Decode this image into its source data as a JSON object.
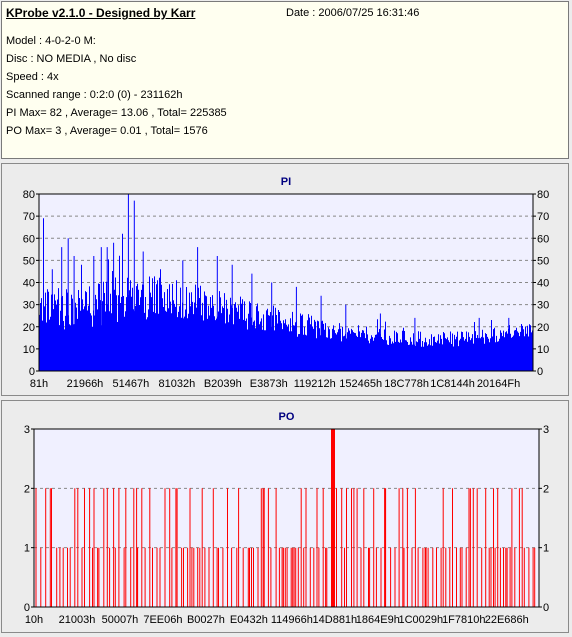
{
  "info": {
    "title": "KProbe v2.1.0 - Designed by Karr",
    "date": "Date : 2006/07/25 16:31:46",
    "lines": [
      "Model : 4-0-2-0 M:",
      "Disc : NO MEDIA , No disc",
      "Speed : 4x",
      "Scanned range : 0:2:0 (0) - 231162h",
      "PI Max= 82 , Average= 13.06 , Total= 225385",
      "PO Max= 3 , Average= 0.01 , Total= 1576"
    ]
  },
  "colors": {
    "pi": "#0000ff",
    "po": "#ff0000",
    "plot_bg": "#f0f0ff",
    "title": "#000080"
  },
  "chart_data": [
    {
      "type": "bar",
      "title": "PI",
      "ylim": [
        0,
        80
      ],
      "yticks": [
        0,
        10,
        20,
        30,
        40,
        50,
        60,
        70,
        80
      ],
      "xticks": [
        "81h",
        "21966h",
        "51467h",
        "81032h",
        "B2039h",
        "E3873h",
        "119212h",
        "152465h",
        "18C778h",
        "1C8144h",
        "20164Fh"
      ],
      "grid": true,
      "max": 82,
      "average": 13.06,
      "profile": [
        {
          "x": 0.0,
          "base": 26,
          "amp": 14
        },
        {
          "x": 0.05,
          "base": 24,
          "amp": 16
        },
        {
          "x": 0.15,
          "base": 27,
          "amp": 18
        },
        {
          "x": 0.25,
          "base": 30,
          "amp": 16
        },
        {
          "x": 0.32,
          "base": 27,
          "amp": 14
        },
        {
          "x": 0.4,
          "base": 23,
          "amp": 13
        },
        {
          "x": 0.48,
          "base": 21,
          "amp": 11
        },
        {
          "x": 0.56,
          "base": 17,
          "amp": 9
        },
        {
          "x": 0.65,
          "base": 15,
          "amp": 7
        },
        {
          "x": 0.75,
          "base": 13,
          "amp": 6
        },
        {
          "x": 0.85,
          "base": 13,
          "amp": 6
        },
        {
          "x": 1.0,
          "base": 17,
          "amp": 6
        }
      ],
      "spikes": [
        {
          "x": 0.008,
          "y": 69
        },
        {
          "x": 0.026,
          "y": 46
        },
        {
          "x": 0.045,
          "y": 56
        },
        {
          "x": 0.058,
          "y": 60
        },
        {
          "x": 0.07,
          "y": 52
        },
        {
          "x": 0.085,
          "y": 48
        },
        {
          "x": 0.11,
          "y": 52
        },
        {
          "x": 0.125,
          "y": 56
        },
        {
          "x": 0.137,
          "y": 56
        },
        {
          "x": 0.15,
          "y": 58
        },
        {
          "x": 0.168,
          "y": 62
        },
        {
          "x": 0.18,
          "y": 82
        },
        {
          "x": 0.192,
          "y": 77
        },
        {
          "x": 0.21,
          "y": 54
        },
        {
          "x": 0.245,
          "y": 46
        },
        {
          "x": 0.29,
          "y": 50
        },
        {
          "x": 0.32,
          "y": 56
        },
        {
          "x": 0.36,
          "y": 52
        },
        {
          "x": 0.39,
          "y": 48
        },
        {
          "x": 0.43,
          "y": 44
        },
        {
          "x": 0.47,
          "y": 40
        },
        {
          "x": 0.52,
          "y": 38
        },
        {
          "x": 0.57,
          "y": 34
        },
        {
          "x": 0.62,
          "y": 30
        },
        {
          "x": 0.69,
          "y": 26
        },
        {
          "x": 0.76,
          "y": 24
        },
        {
          "x": 0.89,
          "y": 24
        },
        {
          "x": 0.95,
          "y": 24
        }
      ]
    },
    {
      "type": "bar",
      "title": "PO",
      "ylim": [
        0,
        3
      ],
      "yticks": [
        0,
        1,
        2,
        3
      ],
      "xticks": [
        "10h",
        "21003h",
        "50007h",
        "7EE06h",
        "B0027h",
        "E0432h",
        "114966h",
        "14D881h",
        "1864E9h",
        "1C0029h",
        "1F7810h",
        "22E686h"
      ],
      "grid": true,
      "max": 3,
      "average": 0.01,
      "peak": {
        "x": 0.592,
        "y": 3
      },
      "level_fractions": {
        "2": 0.38,
        "1": 0.62
      }
    }
  ]
}
